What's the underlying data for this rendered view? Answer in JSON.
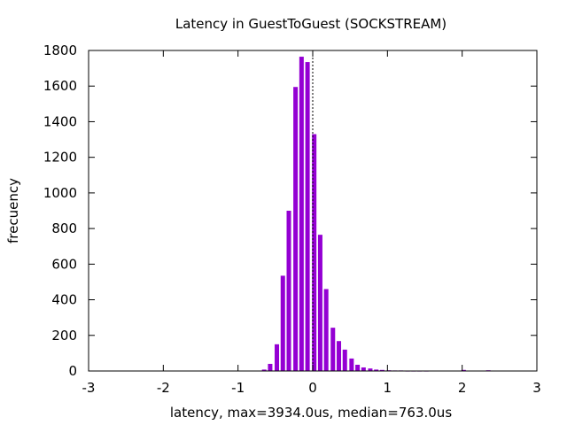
{
  "chart_data": {
    "type": "bar",
    "title": "Latency in GuestToGuest (SOCKSTREAM)",
    "xlabel": "latency, max=3934.0us, median=763.0us",
    "ylabel": "frecuency",
    "xlim": [
      -3,
      3
    ],
    "ylim": [
      0,
      1800
    ],
    "xticks": [
      -3,
      -2,
      -1,
      0,
      1,
      2,
      3
    ],
    "yticks": [
      0,
      200,
      400,
      600,
      800,
      1000,
      1200,
      1400,
      1600,
      1800
    ],
    "bar_color": "#9400D3",
    "vline_x": 0,
    "grid": false,
    "series": [
      {
        "x": [
          -0.65,
          -0.57,
          -0.48,
          -0.4,
          -0.32,
          -0.23,
          -0.15,
          -0.07,
          0.02,
          0.1,
          0.18,
          0.27,
          0.35,
          0.43,
          0.52,
          0.6,
          0.68,
          0.77,
          0.85,
          0.93,
          1.02,
          1.1,
          1.18,
          1.27,
          1.35,
          1.43,
          1.52,
          2.02,
          2.35
        ],
        "values": [
          8,
          40,
          150,
          535,
          900,
          1595,
          1765,
          1735,
          1330,
          765,
          460,
          243,
          168,
          120,
          70,
          35,
          20,
          14,
          8,
          6,
          4,
          3,
          3,
          2,
          2,
          2,
          2,
          6,
          4
        ]
      }
    ]
  }
}
